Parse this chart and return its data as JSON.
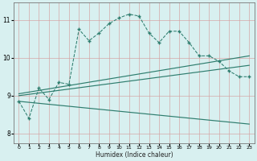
{
  "background_color": "#d8f0f0",
  "grid_color": "#c8dede",
  "line_color": "#2e7d6e",
  "xlabel": "Humidex (Indice chaleur)",
  "xlim": [
    -0.5,
    23.5
  ],
  "ylim": [
    7.75,
    11.45
  ],
  "yticks": [
    8,
    9,
    10,
    11
  ],
  "xticks": [
    0,
    1,
    2,
    3,
    4,
    5,
    6,
    7,
    8,
    9,
    10,
    11,
    12,
    13,
    14,
    15,
    16,
    17,
    18,
    19,
    20,
    21,
    22,
    23
  ],
  "series": {
    "dotted_main": {
      "x": [
        0,
        1,
        2,
        3,
        4,
        5,
        6,
        7,
        8,
        9,
        10,
        11,
        12,
        13,
        14,
        15,
        16,
        17,
        18,
        19,
        20,
        21,
        22,
        23
      ],
      "y": [
        8.85,
        8.4,
        9.2,
        8.9,
        9.35,
        9.3,
        10.75,
        10.45,
        10.65,
        10.9,
        11.05,
        11.15,
        11.1,
        10.65,
        10.4,
        10.7,
        10.7,
        10.4,
        10.05,
        10.05,
        9.9,
        9.65,
        9.5,
        9.5
      ]
    },
    "line_upper": {
      "x": [
        0,
        23
      ],
      "y": [
        9.05,
        10.05
      ]
    },
    "line_mid": {
      "x": [
        0,
        23
      ],
      "y": [
        9.0,
        9.8
      ]
    },
    "line_lower": {
      "x": [
        0,
        23
      ],
      "y": [
        8.85,
        8.25
      ]
    }
  }
}
